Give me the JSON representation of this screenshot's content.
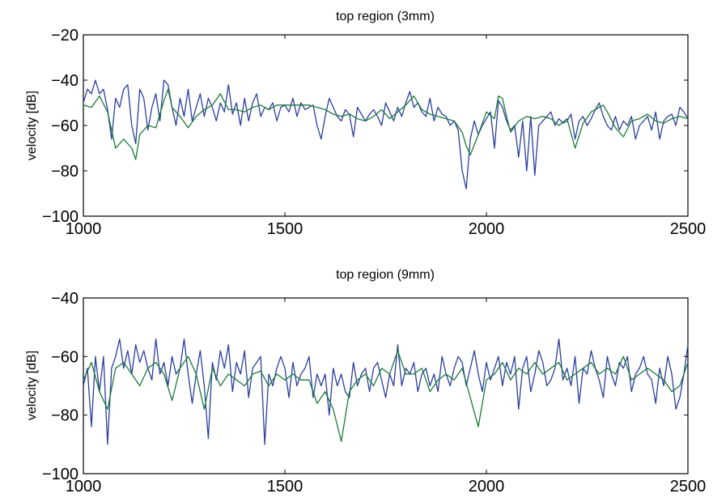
{
  "chart_data": [
    {
      "type": "line",
      "title": "top region (3mm)",
      "xlabel": "",
      "ylabel": "velocity [dB]",
      "xlim": [
        1000,
        2500
      ],
      "ylim": [
        -100,
        -20
      ],
      "xticks": [
        1000,
        1500,
        2000,
        2500
      ],
      "yticks": [
        -100,
        -80,
        -60,
        -40,
        -20
      ],
      "xtick_labels": [
        "1000",
        "1500",
        "2000",
        "2500"
      ],
      "ytick_labels": [
        "−100",
        "−80",
        "−60",
        "−40",
        "−20"
      ],
      "grid": false,
      "series": [
        {
          "color": "#2a3f9d",
          "x": [
            1000,
            1010,
            1020,
            1030,
            1040,
            1050,
            1060,
            1070,
            1080,
            1090,
            1100,
            1110,
            1120,
            1130,
            1140,
            1150,
            1160,
            1170,
            1180,
            1190,
            1200,
            1210,
            1220,
            1230,
            1240,
            1250,
            1260,
            1270,
            1280,
            1290,
            1300,
            1310,
            1320,
            1330,
            1340,
            1350,
            1360,
            1370,
            1380,
            1390,
            1400,
            1410,
            1420,
            1430,
            1440,
            1450,
            1460,
            1470,
            1480,
            1490,
            1500,
            1510,
            1520,
            1530,
            1540,
            1550,
            1560,
            1570,
            1580,
            1590,
            1600,
            1610,
            1620,
            1630,
            1640,
            1650,
            1660,
            1670,
            1680,
            1690,
            1700,
            1710,
            1720,
            1730,
            1740,
            1750,
            1760,
            1770,
            1780,
            1790,
            1800,
            1810,
            1820,
            1830,
            1840,
            1850,
            1860,
            1870,
            1880,
            1890,
            1900,
            1910,
            1920,
            1930,
            1940,
            1950,
            1960,
            1970,
            1980,
            1990,
            2000,
            2010,
            2020,
            2030,
            2040,
            2050,
            2060,
            2070,
            2080,
            2090,
            2100,
            2110,
            2120,
            2130,
            2140,
            2150,
            2160,
            2170,
            2180,
            2190,
            2200,
            2210,
            2220,
            2230,
            2240,
            2250,
            2260,
            2270,
            2280,
            2290,
            2300,
            2310,
            2320,
            2330,
            2340,
            2350,
            2360,
            2370,
            2380,
            2390,
            2400,
            2410,
            2420,
            2430,
            2440,
            2450,
            2460,
            2470,
            2480,
            2490,
            2500
          ],
          "y": [
            -50,
            -44,
            -46,
            -40,
            -46,
            -44,
            -53,
            -66,
            -48,
            -52,
            -44,
            -42,
            -60,
            -68,
            -44,
            -48,
            -62,
            -52,
            -46,
            -58,
            -40,
            -42,
            -52,
            -60,
            -48,
            -56,
            -44,
            -58,
            -52,
            -46,
            -56,
            -48,
            -52,
            -58,
            -50,
            -54,
            -42,
            -55,
            -50,
            -60,
            -48,
            -58,
            -50,
            -46,
            -56,
            -52,
            -53,
            -50,
            -58,
            -52,
            -51,
            -54,
            -48,
            -56,
            -50,
            -53,
            -52,
            -51,
            -60,
            -66,
            -56,
            -48,
            -52,
            -56,
            -58,
            -53,
            -55,
            -65,
            -52,
            -55,
            -58,
            -55,
            -53,
            -56,
            -60,
            -50,
            -54,
            -58,
            -52,
            -56,
            -50,
            -45,
            -52,
            -50,
            -54,
            -56,
            -48,
            -58,
            -52,
            -55,
            -56,
            -60,
            -58,
            -62,
            -80,
            -88,
            -66,
            -58,
            -64,
            -60,
            -57,
            -54,
            -70,
            -49,
            -52,
            -58,
            -62,
            -60,
            -74,
            -58,
            -80,
            -56,
            -82,
            -60,
            -58,
            -56,
            -54,
            -60,
            -57,
            -59,
            -58,
            -55,
            -66,
            -58,
            -56,
            -60,
            -57,
            -53,
            -50,
            -56,
            -60,
            -62,
            -56,
            -62,
            -58,
            -60,
            -56,
            -66,
            -60,
            -58,
            -56,
            -62,
            -54,
            -66,
            -58,
            -56,
            -55,
            -60,
            -52,
            -54,
            -57
          ]
        },
        {
          "color": "#1a7a3a",
          "x": [
            1000,
            1020,
            1040,
            1060,
            1080,
            1100,
            1120,
            1130,
            1140,
            1160,
            1180,
            1200,
            1210,
            1220,
            1240,
            1260,
            1280,
            1300,
            1320,
            1340,
            1360,
            1380,
            1400,
            1420,
            1440,
            1460,
            1480,
            1500,
            1520,
            1540,
            1560,
            1580,
            1600,
            1620,
            1640,
            1660,
            1680,
            1700,
            1720,
            1740,
            1760,
            1780,
            1800,
            1820,
            1840,
            1860,
            1880,
            1900,
            1920,
            1940,
            1950,
            1960,
            1980,
            2000,
            2020,
            2030,
            2040,
            2050,
            2060,
            2080,
            2100,
            2120,
            2140,
            2160,
            2180,
            2200,
            2220,
            2240,
            2260,
            2280,
            2290,
            2300,
            2320,
            2340,
            2360,
            2380,
            2400,
            2420,
            2440,
            2460,
            2480,
            2500
          ],
          "y": [
            -51,
            -52,
            -47,
            -54,
            -70,
            -66,
            -70,
            -75,
            -64,
            -60,
            -61,
            -49,
            -44,
            -52,
            -56,
            -61,
            -56,
            -53,
            -51,
            -46,
            -53,
            -53,
            -54,
            -52,
            -51,
            -53,
            -51,
            -51,
            -51,
            -51,
            -51,
            -52,
            -53,
            -55,
            -56,
            -55,
            -57,
            -58,
            -56,
            -53,
            -57,
            -54,
            -51,
            -47,
            -53,
            -55,
            -56,
            -57,
            -58,
            -63,
            -69,
            -73,
            -64,
            -54,
            -57,
            -47,
            -48,
            -56,
            -63,
            -58,
            -56,
            -57,
            -56,
            -57,
            -60,
            -57,
            -70,
            -59,
            -54,
            -52,
            -51,
            -54,
            -61,
            -65,
            -58,
            -57,
            -55,
            -58,
            -59,
            -57,
            -56,
            -57
          ]
        }
      ]
    },
    {
      "type": "line",
      "title": "top region (9mm)",
      "xlabel": "",
      "ylabel": "velocity [dB]",
      "xlim": [
        1000,
        2500
      ],
      "ylim": [
        -100,
        -40
      ],
      "xticks": [
        1000,
        1500,
        2000,
        2500
      ],
      "yticks": [
        -100,
        -80,
        -60,
        -40
      ],
      "xtick_labels": [
        "1000",
        "1500",
        "2000",
        "2500"
      ],
      "ytick_labels": [
        "−100",
        "−80",
        "−60",
        "−40"
      ],
      "grid": false,
      "series": [
        {
          "color": "#2a3f9d",
          "x": [
            1000,
            1010,
            1020,
            1030,
            1040,
            1050,
            1060,
            1070,
            1080,
            1090,
            1100,
            1110,
            1120,
            1130,
            1140,
            1150,
            1160,
            1170,
            1180,
            1190,
            1200,
            1210,
            1220,
            1230,
            1240,
            1250,
            1260,
            1270,
            1280,
            1290,
            1300,
            1310,
            1320,
            1330,
            1340,
            1350,
            1360,
            1370,
            1380,
            1390,
            1400,
            1410,
            1420,
            1430,
            1440,
            1450,
            1460,
            1470,
            1480,
            1490,
            1500,
            1510,
            1520,
            1530,
            1540,
            1550,
            1560,
            1570,
            1580,
            1590,
            1600,
            1610,
            1620,
            1630,
            1640,
            1650,
            1660,
            1670,
            1680,
            1690,
            1700,
            1710,
            1720,
            1730,
            1740,
            1750,
            1760,
            1770,
            1780,
            1790,
            1800,
            1810,
            1820,
            1830,
            1840,
            1850,
            1860,
            1870,
            1880,
            1890,
            1900,
            1910,
            1920,
            1930,
            1940,
            1950,
            1960,
            1970,
            1980,
            1990,
            2000,
            2010,
            2020,
            2030,
            2040,
            2050,
            2060,
            2070,
            2080,
            2090,
            2100,
            2110,
            2120,
            2130,
            2140,
            2150,
            2160,
            2170,
            2180,
            2190,
            2200,
            2210,
            2220,
            2230,
            2240,
            2250,
            2260,
            2270,
            2280,
            2290,
            2300,
            2310,
            2320,
            2330,
            2340,
            2350,
            2360,
            2370,
            2380,
            2390,
            2400,
            2410,
            2420,
            2430,
            2440,
            2450,
            2460,
            2470,
            2480,
            2490,
            2500
          ],
          "y": [
            -70,
            -64,
            -84,
            -60,
            -72,
            -60,
            -90,
            -64,
            -60,
            -54,
            -64,
            -58,
            -66,
            -56,
            -62,
            -58,
            -64,
            -68,
            -54,
            -66,
            -62,
            -70,
            -60,
            -66,
            -64,
            -54,
            -66,
            -76,
            -66,
            -58,
            -70,
            -88,
            -62,
            -68,
            -58,
            -64,
            -56,
            -72,
            -62,
            -66,
            -58,
            -74,
            -64,
            -62,
            -60,
            -90,
            -66,
            -70,
            -64,
            -60,
            -64,
            -74,
            -62,
            -70,
            -66,
            -64,
            -60,
            -74,
            -66,
            -70,
            -66,
            -80,
            -64,
            -70,
            -66,
            -72,
            -74,
            -62,
            -70,
            -66,
            -64,
            -72,
            -64,
            -62,
            -68,
            -74,
            -66,
            -70,
            -56,
            -70,
            -64,
            -66,
            -62,
            -72,
            -66,
            -64,
            -70,
            -66,
            -72,
            -60,
            -66,
            -70,
            -64,
            -60,
            -62,
            -70,
            -64,
            -58,
            -66,
            -72,
            -62,
            -68,
            -64,
            -60,
            -70,
            -62,
            -66,
            -60,
            -78,
            -64,
            -60,
            -72,
            -66,
            -58,
            -62,
            -70,
            -68,
            -64,
            -54,
            -68,
            -64,
            -70,
            -60,
            -76,
            -64,
            -66,
            -58,
            -64,
            -68,
            -74,
            -60,
            -66,
            -70,
            -62,
            -64,
            -60,
            -72,
            -66,
            -64,
            -60,
            -66,
            -68,
            -76,
            -64,
            -70,
            -60,
            -66,
            -78,
            -74,
            -66,
            -56
          ]
        },
        {
          "color": "#1a7a3a",
          "x": [
            1000,
            1020,
            1040,
            1060,
            1080,
            1100,
            1120,
            1140,
            1160,
            1180,
            1200,
            1220,
            1240,
            1260,
            1280,
            1300,
            1320,
            1340,
            1360,
            1380,
            1400,
            1420,
            1440,
            1460,
            1480,
            1500,
            1520,
            1540,
            1560,
            1580,
            1600,
            1620,
            1640,
            1660,
            1680,
            1700,
            1720,
            1740,
            1760,
            1780,
            1800,
            1820,
            1840,
            1860,
            1880,
            1900,
            1920,
            1940,
            1960,
            1980,
            2000,
            2020,
            2040,
            2060,
            2080,
            2100,
            2120,
            2140,
            2160,
            2180,
            2200,
            2220,
            2240,
            2260,
            2280,
            2300,
            2320,
            2340,
            2360,
            2380,
            2400,
            2420,
            2440,
            2460,
            2480,
            2500
          ],
          "y": [
            -68,
            -62,
            -72,
            -78,
            -64,
            -62,
            -66,
            -70,
            -64,
            -62,
            -66,
            -75,
            -64,
            -60,
            -66,
            -78,
            -64,
            -70,
            -66,
            -68,
            -70,
            -66,
            -65,
            -70,
            -66,
            -68,
            -66,
            -68,
            -68,
            -76,
            -72,
            -78,
            -89,
            -72,
            -68,
            -66,
            -70,
            -64,
            -66,
            -58,
            -66,
            -66,
            -64,
            -72,
            -68,
            -66,
            -68,
            -64,
            -74,
            -84,
            -68,
            -66,
            -62,
            -68,
            -64,
            -66,
            -62,
            -66,
            -64,
            -62,
            -68,
            -66,
            -64,
            -62,
            -66,
            -64,
            -66,
            -60,
            -68,
            -66,
            -64,
            -66,
            -68,
            -72,
            -70,
            -62
          ]
        }
      ]
    }
  ]
}
